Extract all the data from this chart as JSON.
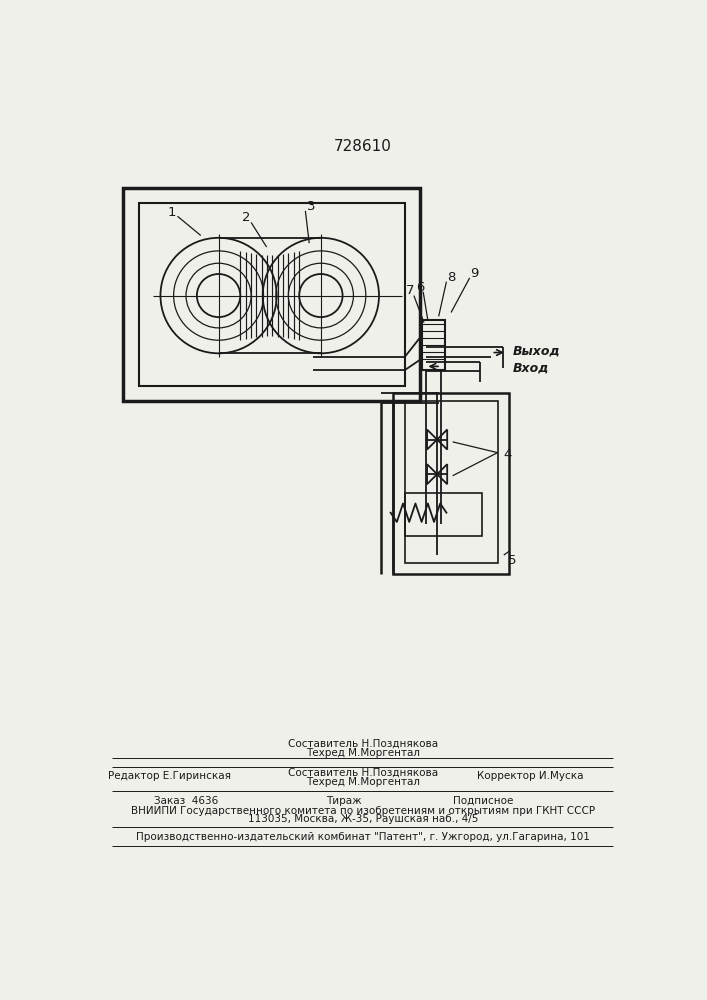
{
  "title": "728610",
  "title_fontsize": 11,
  "bg_color": "#f0f0eb",
  "line_color": "#1a1a1a",
  "label_1": "1",
  "label_2": "2",
  "label_3": "3",
  "label_4": "4",
  "label_5": "5",
  "label_6": "6",
  "label_7": "7",
  "label_8": "8",
  "label_9": "9",
  "text_vyhod": "Выход",
  "text_vhod": "Вход",
  "footer_line1": "Составитель Н.Позднякова",
  "footer_line2": "Техред М.Моргентал",
  "footer_line3": "Корректор И.Муска",
  "footer_line4": "Редактор Е.Гиринская",
  "footer_line5": "Заказ  4636",
  "footer_line6": "Тираж",
  "footer_line7": "Подписное",
  "footer_line8": "ВНИИПИ Государственного комитета по изобретениям и открытиям при ГКНТ СССР",
  "footer_line9": "113035, Москва, Ж-35, Раушская наб., 4/5",
  "footer_line10": "Производственно-издательский комбинат \"Патент\", г. Ужгород, ул.Гагарина, 101"
}
